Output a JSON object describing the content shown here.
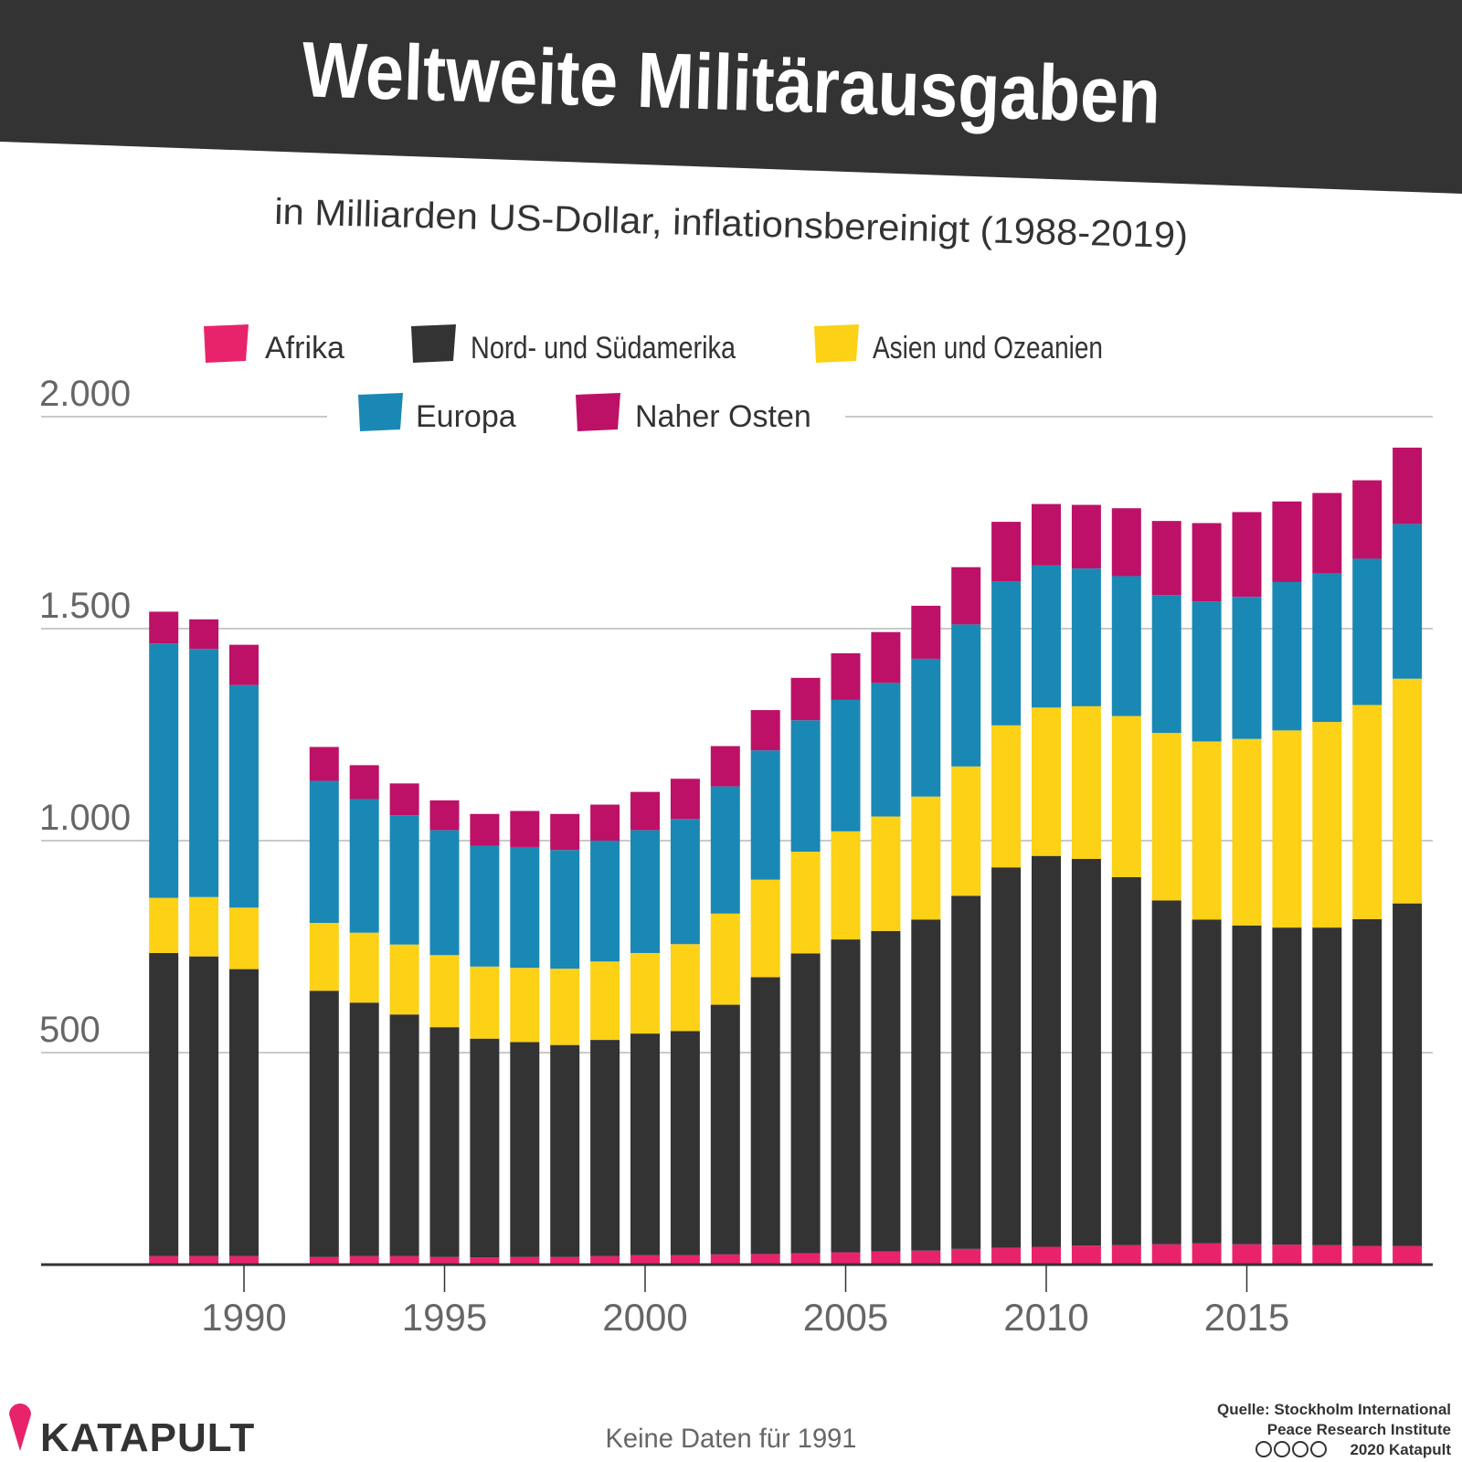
{
  "header": {
    "title": "Weltweite Militärausgaben",
    "subtitle": "in Milliarden US-Dollar, inflationsbereinigt (1988-2019)"
  },
  "colors": {
    "header_bg": "#333333",
    "afrika": "#E8236C",
    "amerika": "#333333",
    "asien": "#FCD116",
    "europa": "#1A88B4",
    "nahost": "#BD1167",
    "grid": "#aaaaaa",
    "axis_text": "#666666"
  },
  "footer": {
    "brand": "KATAPULT",
    "note": "Keine Daten für 1991",
    "source_line1": "Quelle: Stockholm International",
    "source_line2": "Peace Research Institute",
    "copyright": "2020 Katapult",
    "icons": [
      "cc-icon",
      "by-icon",
      "nc-icon",
      "nd-icon"
    ]
  },
  "chart_data": {
    "type": "bar",
    "stacked": true,
    "title": "Weltweite Militärausgaben",
    "subtitle": "in Milliarden US-Dollar, inflationsbereinigt (1988-2019)",
    "ylim": [
      0,
      2000
    ],
    "yticks": [
      500,
      1000,
      1500,
      2000
    ],
    "ytick_labels": [
      "500",
      "1.000",
      "1.500",
      "2.000"
    ],
    "xticks": [
      1990,
      1995,
      2000,
      2005,
      2010,
      2015
    ],
    "xtick_labels": [
      "1990",
      "1995",
      "2000",
      "2005",
      "2010",
      "2015"
    ],
    "grid": true,
    "legend_position": "top",
    "categories": [
      1988,
      1989,
      1990,
      1992,
      1993,
      1994,
      1995,
      1996,
      1997,
      1998,
      1999,
      2000,
      2001,
      2002,
      2003,
      2004,
      2005,
      2006,
      2007,
      2008,
      2009,
      2010,
      2011,
      2012,
      2013,
      2014,
      2015,
      2016,
      2017,
      2018,
      2019
    ],
    "series": [
      {
        "name": "Afrika",
        "key": "afrika",
        "values": [
          20,
          20,
          20,
          18,
          20,
          20,
          18,
          17,
          18,
          18,
          20,
          22,
          22,
          24,
          25,
          27,
          29,
          31,
          33,
          37,
          40,
          42,
          45,
          46,
          48,
          50,
          48,
          47,
          46,
          44,
          44
        ]
      },
      {
        "name": "Nord- und Südamerika",
        "key": "amerika",
        "values": [
          715,
          707,
          677,
          628,
          598,
          570,
          542,
          516,
          507,
          500,
          510,
          523,
          529,
          589,
          653,
          707,
          738,
          756,
          781,
          833,
          897,
          922,
          912,
          868,
          811,
          764,
          752,
          748,
          749,
          771,
          808
        ]
      },
      {
        "name": "Asien und Ozeanien",
        "key": "asien",
        "values": [
          130,
          140,
          145,
          160,
          165,
          165,
          170,
          170,
          175,
          180,
          185,
          190,
          205,
          215,
          230,
          240,
          255,
          270,
          290,
          305,
          335,
          350,
          360,
          380,
          395,
          420,
          440,
          465,
          485,
          505,
          530
        ]
      },
      {
        "name": "Europa",
        "key": "europa",
        "values": [
          600,
          585,
          525,
          335,
          315,
          305,
          295,
          285,
          285,
          280,
          285,
          290,
          295,
          300,
          305,
          310,
          310,
          315,
          325,
          335,
          340,
          335,
          325,
          330,
          325,
          330,
          335,
          350,
          350,
          345,
          365
        ]
      },
      {
        "name": "Naher Osten",
        "key": "nahost",
        "values": [
          75,
          70,
          95,
          80,
          80,
          75,
          70,
          75,
          85,
          85,
          85,
          90,
          95,
          95,
          95,
          100,
          110,
          120,
          125,
          135,
          140,
          145,
          150,
          160,
          175,
          185,
          200,
          190,
          190,
          185,
          180
        ]
      }
    ]
  }
}
